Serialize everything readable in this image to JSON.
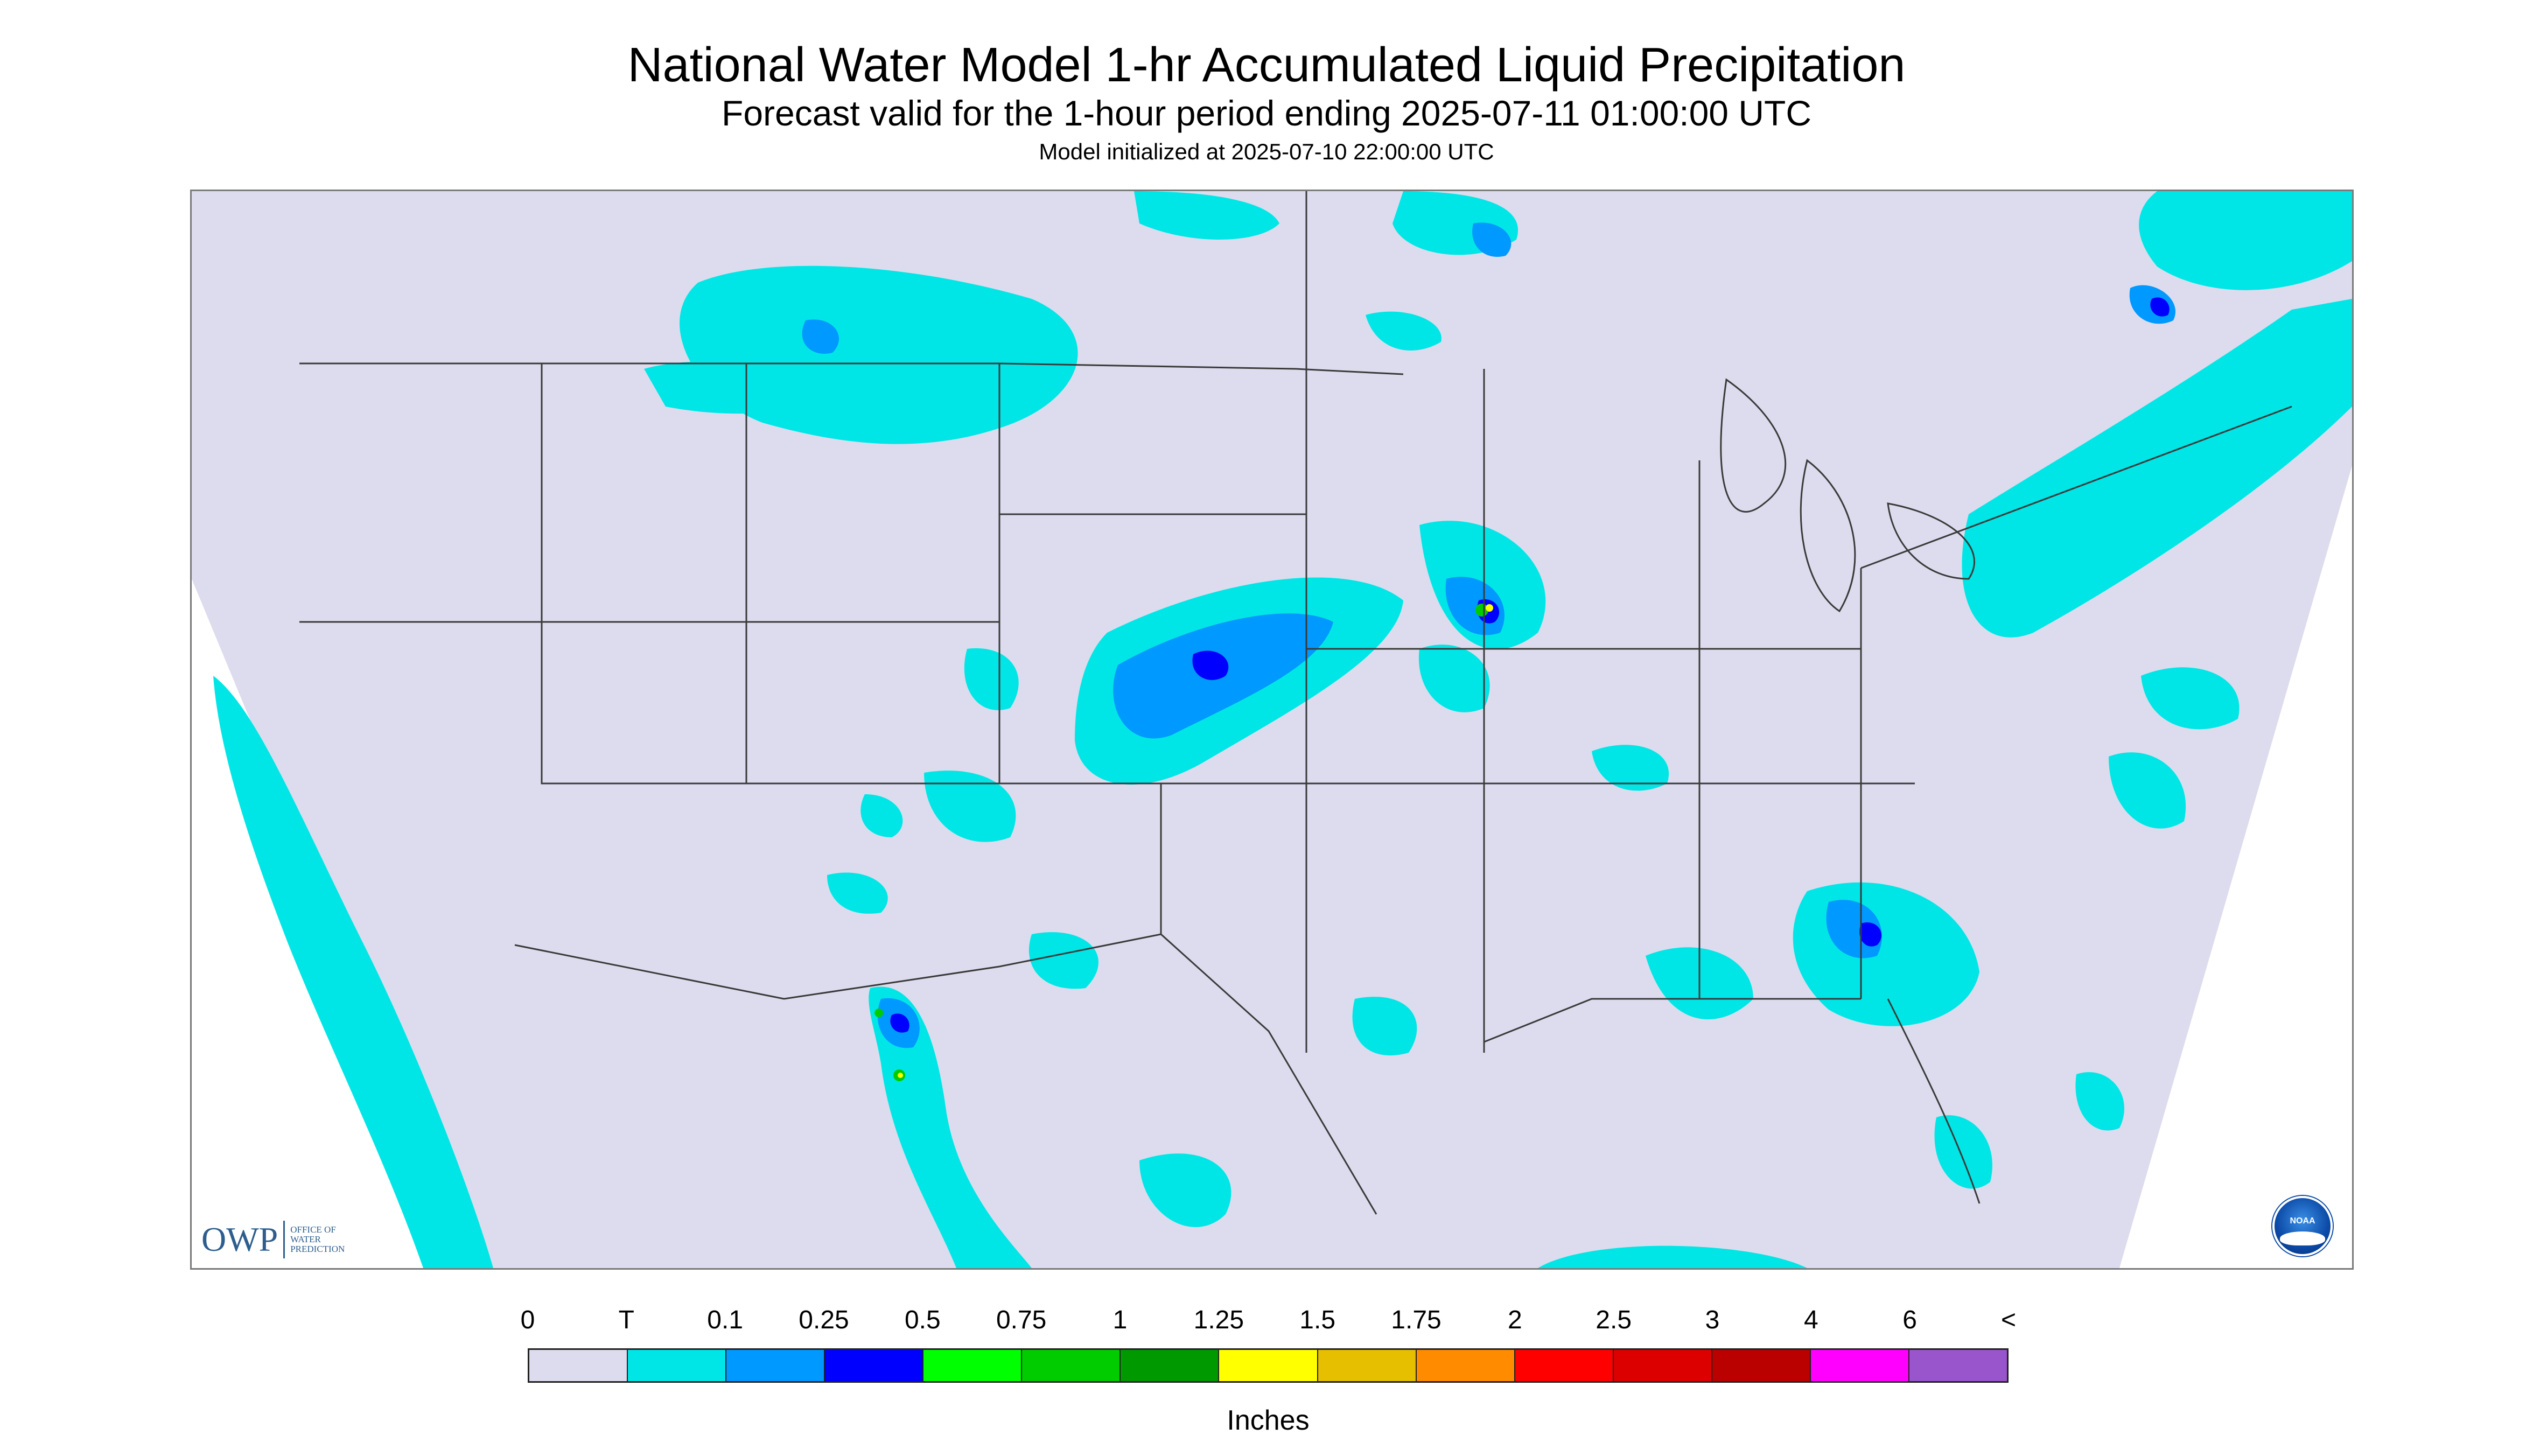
{
  "header": {
    "title": "National Water Model 1-hr Accumulated Liquid Precipitation",
    "subtitle": "Forecast valid for the 1-hour period ending 2025-07-11 01:00:00 UTC",
    "init": "Model initialized at 2025-07-10 22:00:00 UTC"
  },
  "map": {
    "background_color": "#dcdcee",
    "boundary_color": "#3a3a3a",
    "logos": {
      "owp_mark": "OWP",
      "owp_name": "OFFICE OF\nWATER\nPREDICTION",
      "noaa_mark": "NOAA"
    }
  },
  "legend": {
    "labels": [
      "0",
      "T",
      "0.1",
      "0.25",
      "0.5",
      "0.75",
      "1",
      "1.25",
      "1.5",
      "1.75",
      "2",
      "2.5",
      "3",
      "4",
      "6",
      "<"
    ],
    "colors": [
      "#dcdcee",
      "#00e6e6",
      "#0099ff",
      "#0000ff",
      "#00ff00",
      "#00cc00",
      "#009900",
      "#ffff00",
      "#e6c000",
      "#ff8c00",
      "#ff0000",
      "#dd0000",
      "#bb0000",
      "#ff00ff",
      "#9955cc"
    ],
    "units": "Inches"
  }
}
